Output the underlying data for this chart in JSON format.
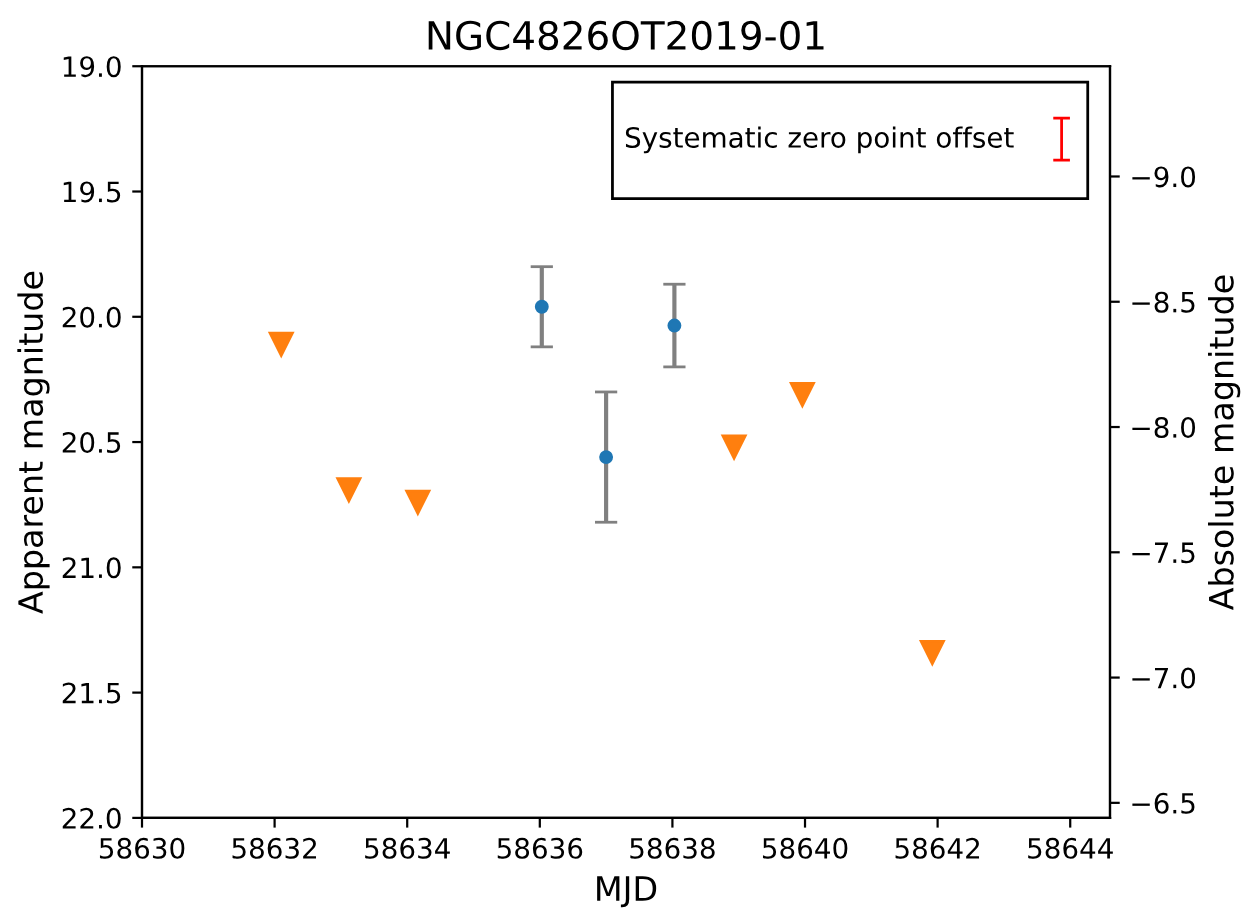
{
  "chart_data": {
    "type": "scatter",
    "title": "NGC4826OT2019-01",
    "xlabel": "MJD",
    "ylabel": "Apparent magnitude",
    "y2label": "Absolute magnitude",
    "xlim": [
      58630,
      58644.6
    ],
    "xticks": [
      58630,
      58632,
      58634,
      58636,
      58638,
      58640,
      58642,
      58644
    ],
    "ylim": [
      22,
      19
    ],
    "yticks": [
      {
        "value": 19,
        "label": "19.0"
      },
      19.5,
      {
        "value": 20,
        "label": "20.0"
      },
      20.5,
      {
        "value": 21,
        "label": "21.0"
      },
      21.5,
      {
        "value": 22,
        "label": "22.0"
      }
    ],
    "y2lim": [
      -6.44,
      -9.44
    ],
    "y2ticks": [
      {
        "value": -9,
        "label": "−9.0"
      },
      {
        "value": -8.5,
        "label": "−8.5"
      },
      {
        "value": -8,
        "label": "−8.0"
      },
      {
        "value": -7.5,
        "label": "−7.5"
      },
      {
        "value": -7,
        "label": "−7.0"
      },
      {
        "value": -6.5,
        "label": "−6.5"
      }
    ],
    "grid": false,
    "annotations": [
      "Systematic zero point offset"
    ],
    "series": [
      {
        "color": "#1f77b4",
        "marker": "circle",
        "x": [
          58636.03,
          58637.0,
          58638.03
        ],
        "values": [
          19.96,
          20.56,
          20.035
        ],
        "errors": [
          0.16,
          0.26,
          0.165
        ]
      },
      {
        "color": "#ff7f0e",
        "marker": "triangle",
        "x": [
          58632.1,
          58633.12,
          58634.16,
          58638.93,
          58639.96,
          58641.92
        ],
        "values": [
          20.11,
          20.69,
          20.74,
          20.52,
          20.31,
          21.34
        ]
      }
    ]
  }
}
